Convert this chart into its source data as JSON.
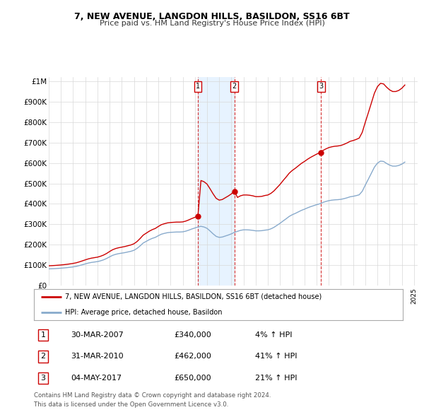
{
  "title": "7, NEW AVENUE, LANGDON HILLS, BASILDON, SS16 6BT",
  "subtitle": "Price paid vs. HM Land Registry's House Price Index (HPI)",
  "ytick_labels": [
    "£0",
    "£100K",
    "£200K",
    "£300K",
    "£400K",
    "£500K",
    "£600K",
    "£700K",
    "£800K",
    "£900K",
    "£1M"
  ],
  "ytick_values": [
    0,
    100000,
    200000,
    300000,
    400000,
    500000,
    600000,
    700000,
    800000,
    900000,
    1000000
  ],
  "ylim": [
    0,
    1020000
  ],
  "xlim_start": 1995.0,
  "xlim_end": 2025.3,
  "background_color": "#ffffff",
  "grid_color": "#d8d8d8",
  "sale_color": "#cc0000",
  "hpi_color": "#88aacc",
  "shade_color": "#ddeeff",
  "legend_label_sale": "7, NEW AVENUE, LANGDON HILLS, BASILDON, SS16 6BT (detached house)",
  "legend_label_hpi": "HPI: Average price, detached house, Basildon",
  "transactions": [
    {
      "num": 1,
      "date": "30-MAR-2007",
      "price": 340000,
      "pct": "4%",
      "x": 2007.25
    },
    {
      "num": 2,
      "date": "31-MAR-2010",
      "price": 462000,
      "pct": "41%",
      "x": 2010.25
    },
    {
      "num": 3,
      "date": "04-MAY-2017",
      "price": 650000,
      "pct": "21%",
      "x": 2017.37
    }
  ],
  "footer_line1": "Contains HM Land Registry data © Crown copyright and database right 2024.",
  "footer_line2": "This data is licensed under the Open Government Licence v3.0.",
  "hpi_index": [
    100.0,
    100.8,
    101.7,
    102.8,
    104.1,
    105.7,
    107.5,
    109.6,
    112.0,
    115.0,
    119.5,
    124.5,
    129.8,
    134.7,
    138.4,
    141.0,
    143.5,
    148.0,
    154.0,
    162.0,
    172.0,
    181.0,
    187.0,
    191.0,
    194.0,
    197.0,
    201.0,
    205.0,
    211.0,
    222.0,
    237.0,
    254.0,
    264.0,
    274.0,
    282.0,
    288.0,
    298.0,
    307.0,
    312.0,
    316.0,
    318.0,
    319.0,
    320.0,
    320.0,
    321.0,
    325.0,
    331.0,
    338.0,
    344.0,
    350.0,
    354.0,
    350.0,
    342.0,
    326.0,
    309.0,
    294.0,
    288.0,
    290.0,
    296.0,
    302.0,
    309.0,
    318.0,
    324.0,
    330.0,
    333.0,
    333.0,
    332.0,
    330.0,
    327.0,
    327.0,
    328.0,
    331.0,
    333.0,
    339.0,
    348.0,
    360.0,
    372.0,
    386.0,
    399.0,
    413.0,
    423.0,
    431.0,
    440.0,
    449.0,
    456.0,
    464.0,
    471.0,
    477.0,
    483.0,
    488.0,
    496.0,
    502.0,
    507.0,
    510.0,
    512.0,
    513.0,
    515.0,
    519.0,
    524.0,
    530.0,
    533.0,
    537.0,
    542.0,
    563.0,
    600.0,
    635.0,
    671.0,
    707.0,
    731.0,
    743.0,
    741.0,
    729.0,
    719.0,
    713.0,
    713.0,
    717.0,
    725.0,
    737.0
  ],
  "xtick_years": [
    1995,
    1996,
    1997,
    1998,
    1999,
    2000,
    2001,
    2002,
    2003,
    2004,
    2005,
    2006,
    2007,
    2008,
    2009,
    2010,
    2011,
    2012,
    2013,
    2014,
    2015,
    2016,
    2017,
    2018,
    2019,
    2020,
    2021,
    2022,
    2023,
    2024,
    2025
  ]
}
